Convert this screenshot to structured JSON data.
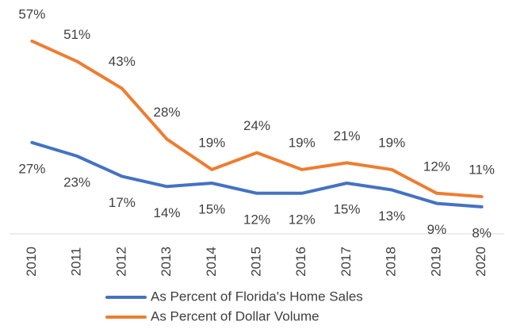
{
  "chart_data": {
    "type": "line",
    "categories": [
      "2010",
      "2011",
      "2012",
      "2013",
      "2014",
      "2015",
      "2016",
      "2017",
      "2018",
      "2019",
      "2020"
    ],
    "series": [
      {
        "name": "As Percent of Florida's Home Sales",
        "color": "#4472c4",
        "values": [
          27,
          23,
          17,
          14,
          15,
          12,
          12,
          15,
          13,
          9,
          8
        ],
        "value_labels": [
          "27%",
          "23%",
          "17%",
          "14%",
          "15%",
          "12%",
          "12%",
          "15%",
          "13%",
          "9%",
          "8%"
        ]
      },
      {
        "name": "As Percent of Dollar Volume",
        "color": "#ed7d31",
        "values": [
          57,
          51,
          43,
          28,
          19,
          24,
          19,
          21,
          19,
          12,
          11
        ],
        "value_labels": [
          "57%",
          "51%",
          "43%",
          "28%",
          "19%",
          "24%",
          "19%",
          "21%",
          "19%",
          "12%",
          "11%"
        ]
      }
    ],
    "ylim": [
      0,
      60
    ],
    "legend": "bottom"
  }
}
